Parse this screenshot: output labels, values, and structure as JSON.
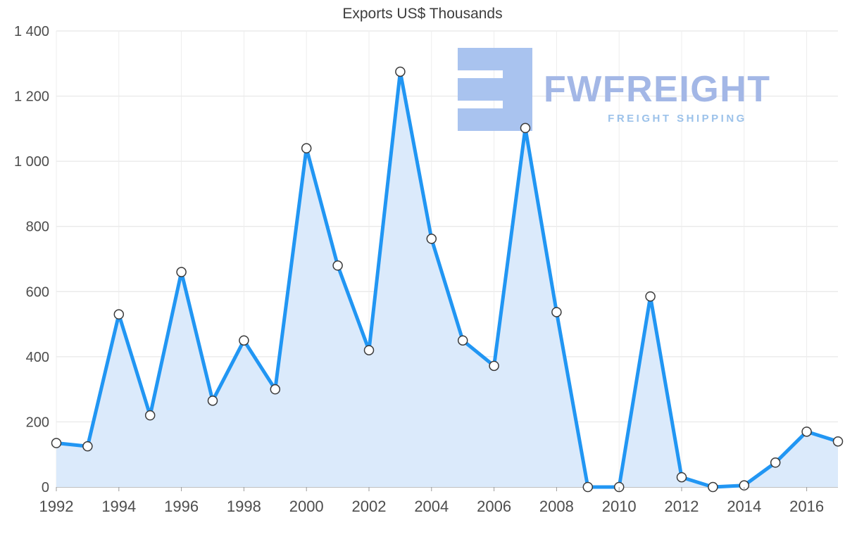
{
  "title": "Exports US$ Thousands",
  "watermark": {
    "brand": "FWFREIGHT",
    "tagline": "FREIGHT SHIPPING",
    "logo_color": "#a9c3ef",
    "brand_color": "#a3b7e6",
    "tagline_color": "#9cc2ea"
  },
  "colors": {
    "line": "#2196f3",
    "area": "#dbeafb",
    "marker_fill": "#ffffff",
    "marker_stroke": "#3a3a3a",
    "grid_h": "#e2e2e2",
    "grid_v": "#ededed",
    "axis": "#9a9a9a",
    "axis_text": "#4d4d4d",
    "title_text": "#3d3d3d"
  },
  "chart_data": {
    "type": "area",
    "title": "Exports US$ Thousands",
    "xlabel": "",
    "ylabel": "US$ Thousands",
    "grid": true,
    "legend": "none",
    "xlim": [
      1992,
      2017
    ],
    "ylim": [
      0,
      1400
    ],
    "x": [
      1992,
      1993,
      1994,
      1995,
      1996,
      1997,
      1998,
      1999,
      2000,
      2001,
      2002,
      2003,
      2004,
      2005,
      2006,
      2007,
      2008,
      2009,
      2010,
      2011,
      2012,
      2013,
      2014,
      2015,
      2016,
      2017
    ],
    "values": [
      135,
      125,
      530,
      220,
      660,
      265,
      450,
      300,
      1040,
      680,
      420,
      1275,
      762,
      450,
      372,
      1102,
      537,
      0,
      0,
      585,
      30,
      0,
      5,
      75,
      170,
      140
    ],
    "series_name": "Exports",
    "yticks": [
      {
        "value": 1400,
        "label": "1 400"
      },
      {
        "value": 1200,
        "label": "1 200"
      },
      {
        "value": 1000,
        "label": "1 000"
      },
      {
        "value": 800,
        "label": "800"
      },
      {
        "value": 600,
        "label": "600"
      },
      {
        "value": 400,
        "label": "400"
      },
      {
        "value": 200,
        "label": "200"
      },
      {
        "value": 0,
        "label": "0"
      }
    ],
    "xticks": [
      {
        "value": 1992,
        "label": "1992"
      },
      {
        "value": 1994,
        "label": "1994"
      },
      {
        "value": 1996,
        "label": "1996"
      },
      {
        "value": 1998,
        "label": "1998"
      },
      {
        "value": 2000,
        "label": "2000"
      },
      {
        "value": 2002,
        "label": "2002"
      },
      {
        "value": 2004,
        "label": "2004"
      },
      {
        "value": 2006,
        "label": "2006"
      },
      {
        "value": 2008,
        "label": "2008"
      },
      {
        "value": 2010,
        "label": "2010"
      },
      {
        "value": 2012,
        "label": "2012"
      },
      {
        "value": 2014,
        "label": "2014"
      },
      {
        "value": 2016,
        "label": "2016"
      }
    ]
  }
}
